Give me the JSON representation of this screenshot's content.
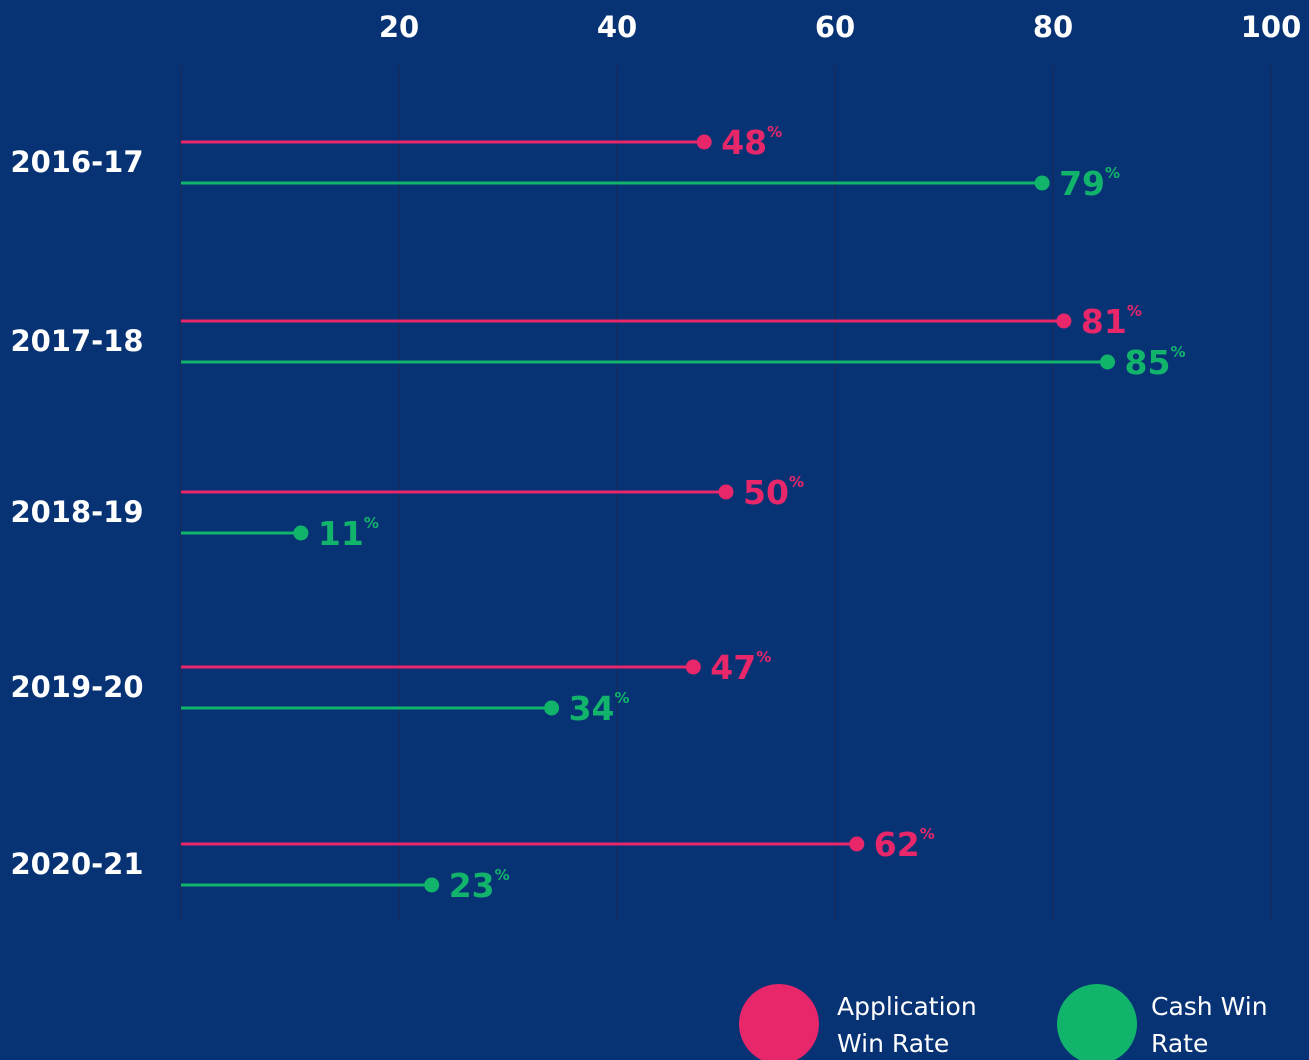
{
  "chart_data": {
    "type": "lollipop",
    "orientation": "horizontal",
    "categories": [
      "2016-17",
      "2017-18",
      "2018-19",
      "2019-20",
      "2020-21"
    ],
    "series": [
      {
        "name": "Application Win Rate",
        "color": "#e8266a",
        "values": [
          48,
          81,
          50,
          47,
          62
        ]
      },
      {
        "name": "Cash Win Rate",
        "color": "#12b46b",
        "values": [
          79,
          85,
          11,
          34,
          23
        ]
      }
    ],
    "x_ticks": [
      20,
      40,
      60,
      80,
      100
    ],
    "xlim": [
      0,
      100
    ],
    "value_suffix": "%",
    "grid": "vertical",
    "legend_position": "bottom-right",
    "background": "#073375",
    "gridline_color": "#132c5e",
    "text_color": "#ffffff"
  },
  "legend": {
    "items": [
      {
        "label": "Application Win Rate",
        "color": "#e8266a"
      },
      {
        "label": "Cash Win Rate",
        "color": "#12b46b"
      }
    ]
  }
}
